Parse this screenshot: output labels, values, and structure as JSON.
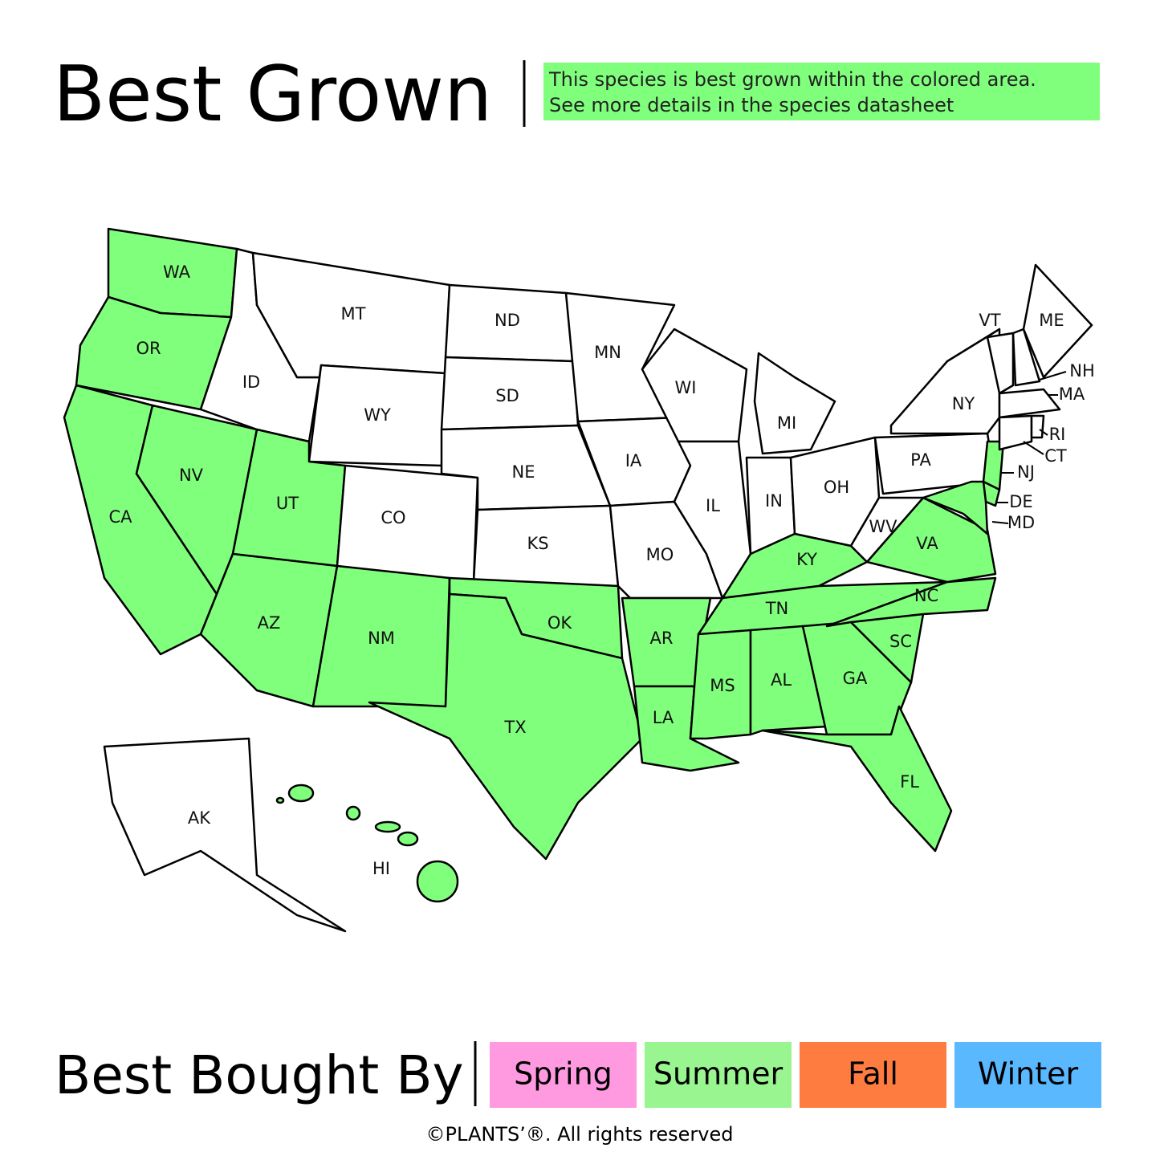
{
  "header": {
    "title": "Best Grown",
    "note": [
      "This species is best grown within the colored area.",
      "See more details in the species datasheet"
    ],
    "note_color": "#80ff7c"
  },
  "map": {
    "highlight_color": "#80ff7c",
    "states": [
      {
        "label": "WA",
        "highlighted": true
      },
      {
        "label": "OR",
        "highlighted": true
      },
      {
        "label": "CA",
        "highlighted": true
      },
      {
        "label": "NV",
        "highlighted": true
      },
      {
        "label": "ID",
        "highlighted": false
      },
      {
        "label": "MT",
        "highlighted": false
      },
      {
        "label": "WY",
        "highlighted": false
      },
      {
        "label": "UT",
        "highlighted": true
      },
      {
        "label": "CO",
        "highlighted": false
      },
      {
        "label": "AZ",
        "highlighted": true
      },
      {
        "label": "NM",
        "highlighted": true
      },
      {
        "label": "ND",
        "highlighted": false
      },
      {
        "label": "SD",
        "highlighted": false
      },
      {
        "label": "NE",
        "highlighted": false
      },
      {
        "label": "KS",
        "highlighted": false
      },
      {
        "label": "OK",
        "highlighted": true
      },
      {
        "label": "TX",
        "highlighted": true
      },
      {
        "label": "MN",
        "highlighted": false
      },
      {
        "label": "IA",
        "highlighted": false
      },
      {
        "label": "MO",
        "highlighted": false
      },
      {
        "label": "AR",
        "highlighted": true
      },
      {
        "label": "LA",
        "highlighted": true
      },
      {
        "label": "WI",
        "highlighted": false
      },
      {
        "label": "IL",
        "highlighted": false
      },
      {
        "label": "MI",
        "highlighted": false
      },
      {
        "label": "IN",
        "highlighted": false
      },
      {
        "label": "OH",
        "highlighted": false
      },
      {
        "label": "KY",
        "highlighted": true
      },
      {
        "label": "TN",
        "highlighted": true
      },
      {
        "label": "MS",
        "highlighted": true
      },
      {
        "label": "AL",
        "highlighted": true
      },
      {
        "label": "GA",
        "highlighted": true
      },
      {
        "label": "FL",
        "highlighted": true
      },
      {
        "label": "SC",
        "highlighted": true
      },
      {
        "label": "NC",
        "highlighted": true
      },
      {
        "label": "VA",
        "highlighted": true
      },
      {
        "label": "WV",
        "highlighted": false
      },
      {
        "label": "PA",
        "highlighted": false
      },
      {
        "label": "NY",
        "highlighted": false
      },
      {
        "label": "NJ",
        "highlighted": true
      },
      {
        "label": "DE",
        "highlighted": true
      },
      {
        "label": "MD",
        "highlighted": true
      },
      {
        "label": "VT",
        "highlighted": false
      },
      {
        "label": "NH",
        "highlighted": false
      },
      {
        "label": "ME",
        "highlighted": false
      },
      {
        "label": "MA",
        "highlighted": false
      },
      {
        "label": "CT",
        "highlighted": false
      },
      {
        "label": "RI",
        "highlighted": false
      },
      {
        "label": "AK",
        "highlighted": false
      },
      {
        "label": "HI",
        "highlighted": true
      }
    ]
  },
  "footer": {
    "title": "Best Bought By",
    "seasons": [
      {
        "label": "Spring",
        "color": "#ff99e0"
      },
      {
        "label": "Summer",
        "color": "#99f590"
      },
      {
        "label": "Fall",
        "color": "#ff7c40"
      },
      {
        "label": "Winter",
        "color": "#5ab8ff"
      }
    ],
    "copyright": "©PLANTS’®. All rights reserved"
  }
}
